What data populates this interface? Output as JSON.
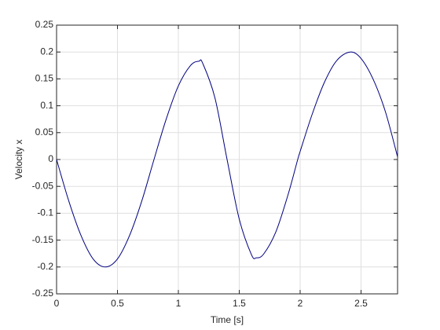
{
  "chart_data": {
    "type": "line",
    "x_label": "Time [s]",
    "y_label": "Velocity x",
    "x": [
      0,
      0.1,
      0.2,
      0.3,
      0.4,
      0.5,
      0.6,
      0.7,
      0.8,
      0.9,
      1.0,
      1.1,
      1.17,
      1.2,
      1.3,
      1.4,
      1.5,
      1.6,
      1.64,
      1.7,
      1.8,
      1.9,
      1.98,
      2.0,
      2.1,
      2.2,
      2.3,
      2.41,
      2.5,
      2.6,
      2.7,
      2.8
    ],
    "series": [
      {
        "color": "#000080",
        "values": [
          0,
          -0.077,
          -0.141,
          -0.185,
          -0.2,
          -0.185,
          -0.141,
          -0.077,
          0,
          0.075,
          0.137,
          0.175,
          0.183,
          0.179,
          0.115,
          0,
          -0.111,
          -0.177,
          -0.183,
          -0.176,
          -0.135,
          -0.066,
          0,
          0.015,
          0.085,
          0.144,
          0.184,
          0.2,
          0.188,
          0.149,
          0.089,
          0.005
        ]
      }
    ],
    "xlim": [
      0,
      2.8
    ],
    "xticks": [
      0,
      0.5,
      1,
      1.5,
      2,
      2.5
    ],
    "ylim": [
      -0.25,
      0.25
    ],
    "yticks": [
      -0.25,
      -0.2,
      -0.15,
      -0.1,
      -0.05,
      0,
      0.05,
      0.1,
      0.15,
      0.2,
      0.25
    ],
    "grid": true
  }
}
